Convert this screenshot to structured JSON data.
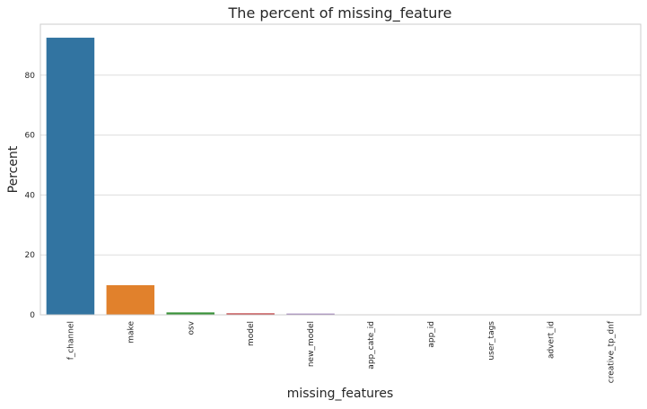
{
  "chart_data": {
    "type": "bar",
    "title": "The percent of missing_feature",
    "xlabel": "missing_features",
    "ylabel": "Percent",
    "categories": [
      "f_channel",
      "make",
      "osv",
      "model",
      "new_model",
      "app_cate_id",
      "app_id",
      "user_tags",
      "advert_id",
      "creative_tp_dnf"
    ],
    "values": [
      92.5,
      9.9,
      0.8,
      0.5,
      0.4,
      0.15,
      0.1,
      0.05,
      0.02,
      0.01
    ],
    "colors": [
      "#3274a1",
      "#e1812c",
      "#3a923a",
      "#c03d3e",
      "#9372b2",
      "#845b53",
      "#d684bd",
      "#7f7f7f",
      "#a9aa35",
      "#2eb7c8"
    ],
    "ylim": [
      0,
      97
    ],
    "yticks": [
      0,
      20,
      40,
      60,
      80
    ],
    "grid": true,
    "legend": "none"
  }
}
